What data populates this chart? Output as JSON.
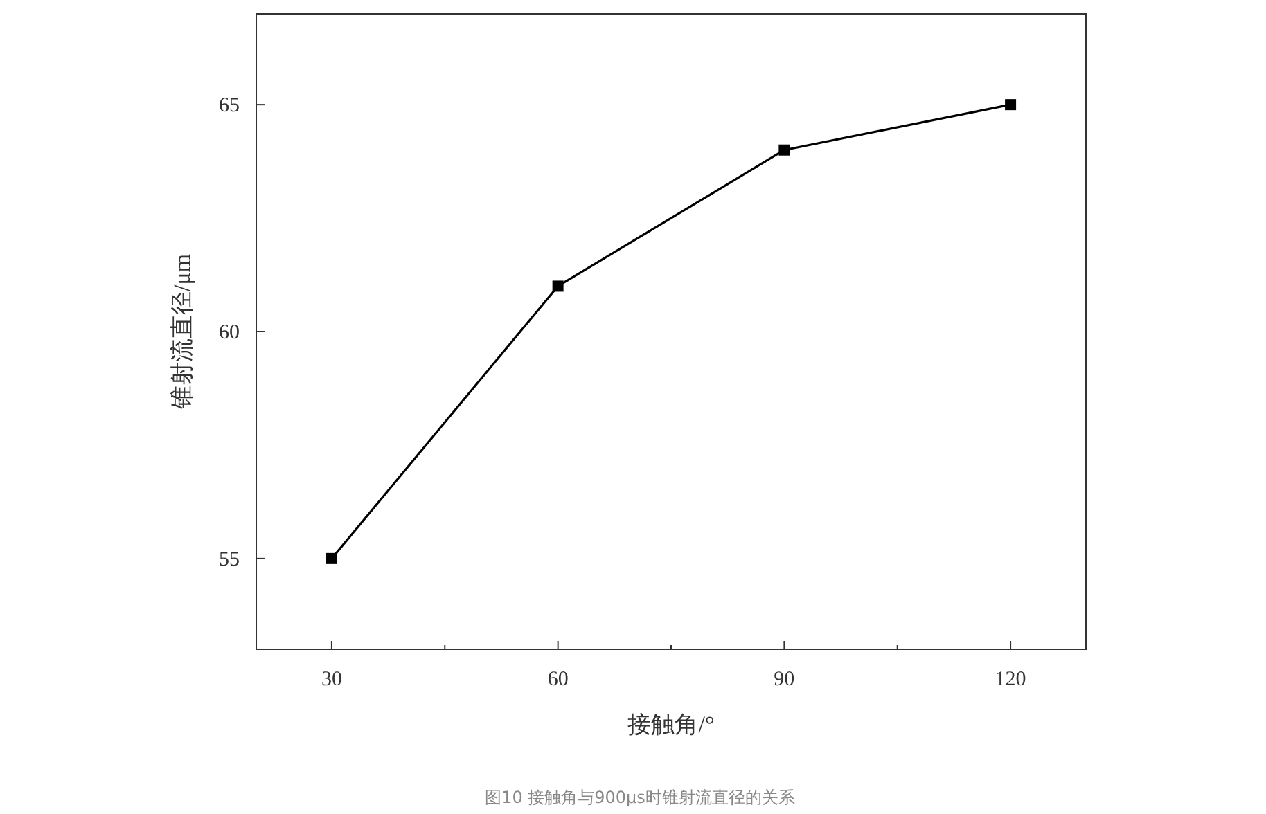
{
  "chart_data": {
    "type": "line",
    "xlabel": "接触角/°",
    "ylabel": "锥射流直径/μm",
    "x": [
      30,
      60,
      90,
      120
    ],
    "series": [
      {
        "color": "#000000",
        "values": [
          55,
          61,
          64,
          65
        ]
      }
    ],
    "xlim": [
      20,
      130
    ],
    "ylim": [
      53,
      67
    ],
    "xticks": [
      30,
      {
        "value": 45,
        "label": null
      },
      60,
      {
        "value": 75,
        "label": null
      },
      90,
      {
        "value": 105,
        "label": null
      },
      120
    ],
    "yticks": [
      55,
      60,
      65
    ],
    "marker": "square",
    "line_style": "solid",
    "annotations": [
      "图10 接触角与900μs时锥射流直径的关系"
    ]
  }
}
